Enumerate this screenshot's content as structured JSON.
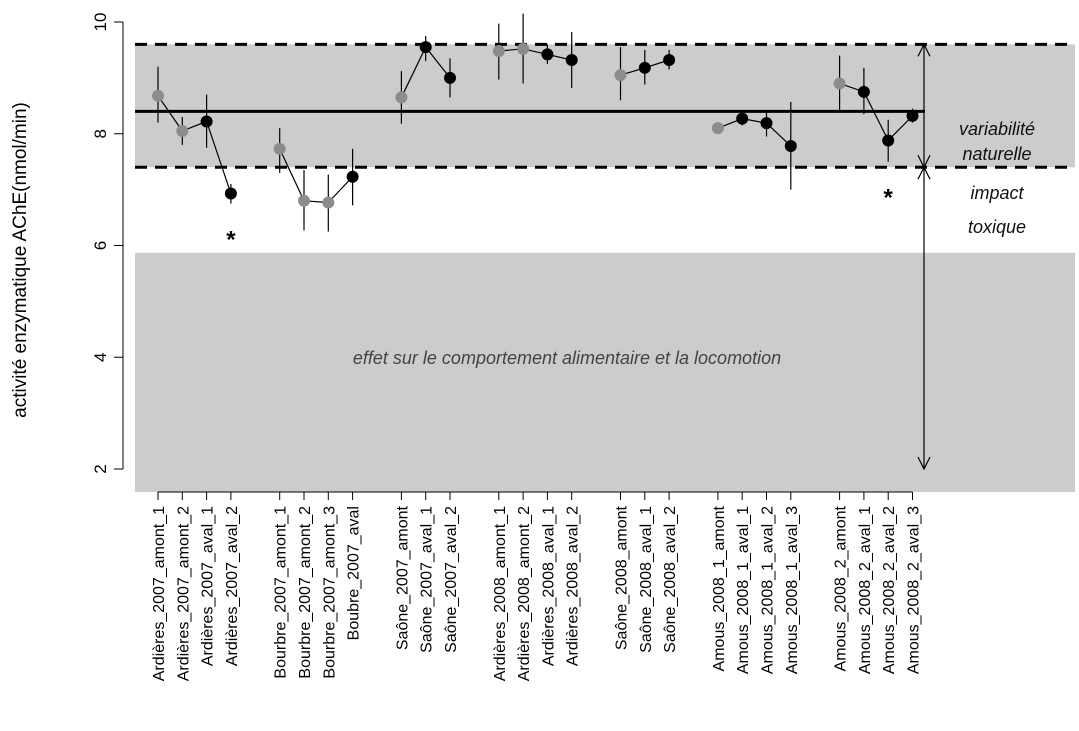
{
  "chart_data": {
    "type": "scatter",
    "ylabel": "activité enzymatique AChE(nmol/min)",
    "ylim": [
      2,
      10
    ],
    "yticks": [
      2,
      4,
      6,
      8,
      10
    ],
    "reference": {
      "mean": 8.4,
      "upper": 9.6,
      "lower": 7.4,
      "effect_threshold": 5.87
    },
    "annotations": {
      "variability_line1": "variabilité",
      "variability_line2": "naturelle",
      "impact_line1": "impact",
      "impact_line2": "toxique",
      "effect": "effet sur le comportement alimentaire et la locomotion",
      "significance_marker": "*"
    },
    "groups": [
      {
        "points": [
          {
            "label": "Ardières_2007_amont_1",
            "value": 8.68,
            "low": 8.2,
            "high": 9.2,
            "station": "amont"
          },
          {
            "label": "Ardières_2007_amont_2",
            "value": 8.05,
            "low": 7.8,
            "high": 8.3,
            "station": "amont"
          },
          {
            "label": "Ardières_2007_aval_1",
            "value": 8.22,
            "low": 7.75,
            "high": 8.7,
            "station": "aval"
          },
          {
            "label": "Ardières_2007_aval_2",
            "value": 6.93,
            "low": 6.75,
            "high": 7.1,
            "station": "aval",
            "significant": true
          }
        ]
      },
      {
        "points": [
          {
            "label": "Bourbre_2007_amont_1",
            "value": 7.73,
            "low": 7.3,
            "high": 8.1,
            "station": "amont"
          },
          {
            "label": "Bourbre_2007_amont_2",
            "value": 6.8,
            "low": 6.27,
            "high": 7.35,
            "station": "amont"
          },
          {
            "label": "Bourbre_2007_amont_3",
            "value": 6.77,
            "low": 6.25,
            "high": 7.27,
            "station": "amont"
          },
          {
            "label": "Boubre_2007_aval",
            "value": 7.23,
            "low": 6.72,
            "high": 7.73,
            "station": "aval"
          }
        ]
      },
      {
        "points": [
          {
            "label": "Saône_2007_amont",
            "value": 8.65,
            "low": 8.18,
            "high": 9.12,
            "station": "amont"
          },
          {
            "label": "Saône_2007_aval_1",
            "value": 9.55,
            "low": 9.3,
            "high": 9.75,
            "station": "aval"
          },
          {
            "label": "Saône_2007_aval_2",
            "value": 9.0,
            "low": 8.65,
            "high": 9.35,
            "station": "aval"
          }
        ]
      },
      {
        "points": [
          {
            "label": "Ardières_2008_amont_1",
            "value": 9.48,
            "low": 8.97,
            "high": 9.97,
            "station": "amont"
          },
          {
            "label": "Ardières_2008_amont_2",
            "value": 9.52,
            "low": 8.9,
            "high": 10.15,
            "station": "amont"
          },
          {
            "label": "Ardières_2008_aval_1",
            "value": 9.42,
            "low": 9.25,
            "high": 9.6,
            "station": "aval"
          },
          {
            "label": "Ardières_2008_aval_2",
            "value": 9.32,
            "low": 8.82,
            "high": 9.82,
            "station": "aval"
          }
        ]
      },
      {
        "points": [
          {
            "label": "Saône_2008_amont",
            "value": 9.05,
            "low": 8.6,
            "high": 9.55,
            "station": "amont"
          },
          {
            "label": "Saône_2008_aval_1",
            "value": 9.18,
            "low": 8.88,
            "high": 9.5,
            "station": "aval"
          },
          {
            "label": "Saône_2008_aval_2",
            "value": 9.32,
            "low": 9.15,
            "high": 9.5,
            "station": "aval"
          }
        ]
      },
      {
        "points": [
          {
            "label": "Amous_2008_1_amont",
            "value": 8.1,
            "low": 8.0,
            "high": 8.2,
            "station": "amont"
          },
          {
            "label": "Amous_2008_1_aval_1",
            "value": 8.27,
            "low": 8.15,
            "high": 8.4,
            "station": "aval"
          },
          {
            "label": "Amous_2008_1_aval_2",
            "value": 8.19,
            "low": 7.95,
            "high": 8.42,
            "station": "aval"
          },
          {
            "label": "Amous_2008_1_aval_3",
            "value": 7.78,
            "low": 7.0,
            "high": 8.57,
            "station": "aval"
          }
        ]
      },
      {
        "points": [
          {
            "label": "Amous_2008_2_amont",
            "value": 8.9,
            "low": 8.4,
            "high": 9.4,
            "station": "amont"
          },
          {
            "label": "Amous_2008_2_aval_1",
            "value": 8.75,
            "low": 8.35,
            "high": 9.18,
            "station": "aval"
          },
          {
            "label": "Amous_2008_2_aval_2",
            "value": 7.88,
            "low": 7.5,
            "high": 8.25,
            "station": "aval",
            "significant": true
          },
          {
            "label": "Amous_2008_2_aval_3",
            "value": 8.32,
            "low": 8.2,
            "high": 8.45,
            "station": "aval"
          }
        ]
      }
    ],
    "colors": {
      "amont": "#8c8c8c",
      "aval": "#000000",
      "band": "#cccccc"
    },
    "grid": false,
    "legend": "none"
  }
}
